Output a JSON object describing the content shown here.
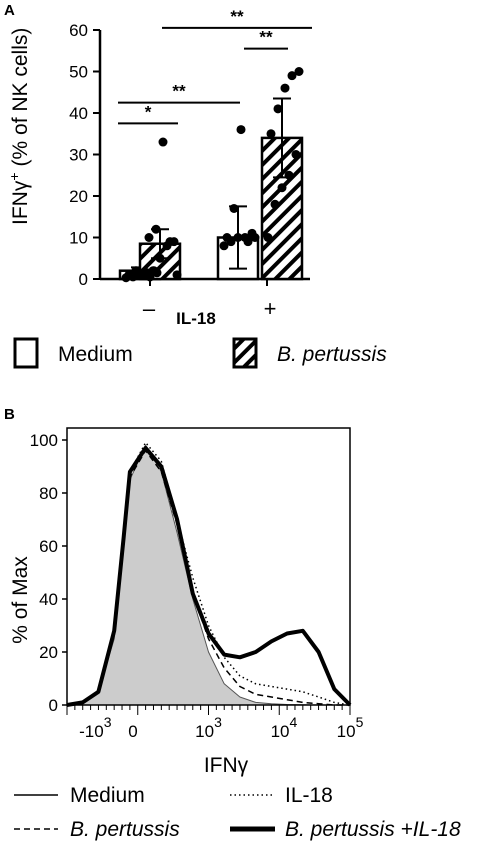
{
  "chart_data": [
    {
      "type": "bar",
      "panel_label": "A",
      "ylabel_main": "IFNγ",
      "ylabel_sup": "+",
      "ylabel_rest": "(% of NK cells)",
      "ylim": [
        0,
        60
      ],
      "yticks": [
        0,
        10,
        20,
        30,
        40,
        50,
        60
      ],
      "xlabel": "IL-18",
      "x_groups": [
        "–",
        "+"
      ],
      "series": [
        {
          "name": "Medium",
          "fill": "open",
          "values": [
            2,
            10
          ],
          "error": [
            0.8,
            7.5
          ],
          "points": [
            [
              0.3,
              0.5,
              1,
              1.5,
              2,
              1,
              2,
              1,
              0.5,
              1.5
            ],
            [
              8,
              9,
              10,
              10,
              11,
              10,
              17,
              36,
              9,
              10
            ]
          ]
        },
        {
          "name": "B. pertussis",
          "fill": "hatched",
          "values": [
            8.5,
            34
          ],
          "error": [
            3.5,
            9.5
          ],
          "points": [
            [
              1,
              2,
              5,
              8,
              9,
              10,
              12,
              33,
              9,
              1
            ],
            [
              10,
              18,
              22,
              25,
              30,
              35,
              41,
              46,
              49,
              50
            ]
          ]
        }
      ],
      "significance": [
        {
          "from": [
            0,
            0
          ],
          "to": [
            0,
            1
          ],
          "label": "*"
        },
        {
          "from": [
            0,
            0
          ],
          "to": [
            1,
            0
          ],
          "label": "**"
        },
        {
          "from": [
            1,
            0
          ],
          "to": [
            1,
            1
          ],
          "label": "**"
        },
        {
          "from": [
            0,
            1
          ],
          "to": [
            1,
            1
          ],
          "label": "**"
        }
      ],
      "legend": [
        "Medium",
        "B. pertussis"
      ],
      "legend_position": "bottom"
    },
    {
      "type": "line",
      "panel_label": "B",
      "ylabel": "% of Max",
      "xlabel": "IFNγ",
      "ylim": [
        0,
        100
      ],
      "yticks": [
        0,
        20,
        40,
        60,
        80,
        100
      ],
      "x_tick_labels": [
        {
          "base": "-10",
          "exp": "3"
        },
        {
          "base": "0",
          "exp": ""
        },
        {
          "base": "10",
          "exp": "3"
        },
        {
          "base": "10",
          "exp": "4"
        },
        {
          "base": "10",
          "exp": "5"
        }
      ],
      "series": [
        {
          "name": "Medium",
          "style": "filled",
          "x": [
            0,
            0.5,
            1.0,
            1.5,
            1.8,
            2.0,
            2.5,
            3.0,
            3.5,
            4.0,
            4.5,
            5.0,
            5.5,
            6.0,
            6.5,
            7.0,
            7.5,
            8.0,
            8.5,
            9.0
          ],
          "y": [
            0,
            1,
            5,
            25,
            60,
            85,
            98,
            88,
            65,
            40,
            20,
            8,
            3,
            1,
            0.5,
            0.2,
            0.1,
            0,
            0,
            0
          ]
        },
        {
          "name": "IL-18",
          "style": "dotted",
          "x": [
            0,
            0.5,
            1.0,
            1.5,
            1.8,
            2.0,
            2.5,
            3.0,
            3.5,
            4.0,
            4.5,
            5.0,
            5.5,
            6.0,
            6.5,
            7.0,
            7.5,
            8.0,
            8.5,
            9.0
          ],
          "y": [
            0,
            1,
            5,
            28,
            62,
            88,
            99,
            92,
            70,
            48,
            30,
            18,
            11,
            8,
            7,
            6,
            5,
            3,
            1,
            0
          ]
        },
        {
          "name": "B. pertussis",
          "style": "dashed",
          "x": [
            0,
            0.5,
            1.0,
            1.5,
            1.8,
            2.0,
            2.5,
            3.0,
            3.5,
            4.0,
            4.5,
            5.0,
            5.5,
            6.0,
            6.5,
            7.0,
            7.5,
            8.0,
            8.5,
            9.0
          ],
          "y": [
            0,
            1,
            5,
            27,
            62,
            86,
            96,
            88,
            68,
            42,
            25,
            14,
            7,
            4,
            3,
            2,
            1,
            0.5,
            0,
            0
          ]
        },
        {
          "name": "B. pertussis +IL-18",
          "style": "thick",
          "x": [
            0,
            0.5,
            1.0,
            1.5,
            1.8,
            2.0,
            2.5,
            3.0,
            3.5,
            4.0,
            4.5,
            5.0,
            5.5,
            6.0,
            6.5,
            7.0,
            7.5,
            8.0,
            8.5,
            9.0
          ],
          "y": [
            0,
            1,
            5,
            28,
            63,
            88,
            97,
            90,
            70,
            42,
            27,
            19,
            18,
            20,
            24,
            27,
            28,
            20,
            6,
            0
          ]
        }
      ],
      "legend": [
        "Medium",
        "IL-18",
        "B. pertussis",
        "B. pertussis +IL-18"
      ],
      "legend_position": "bottom"
    }
  ]
}
